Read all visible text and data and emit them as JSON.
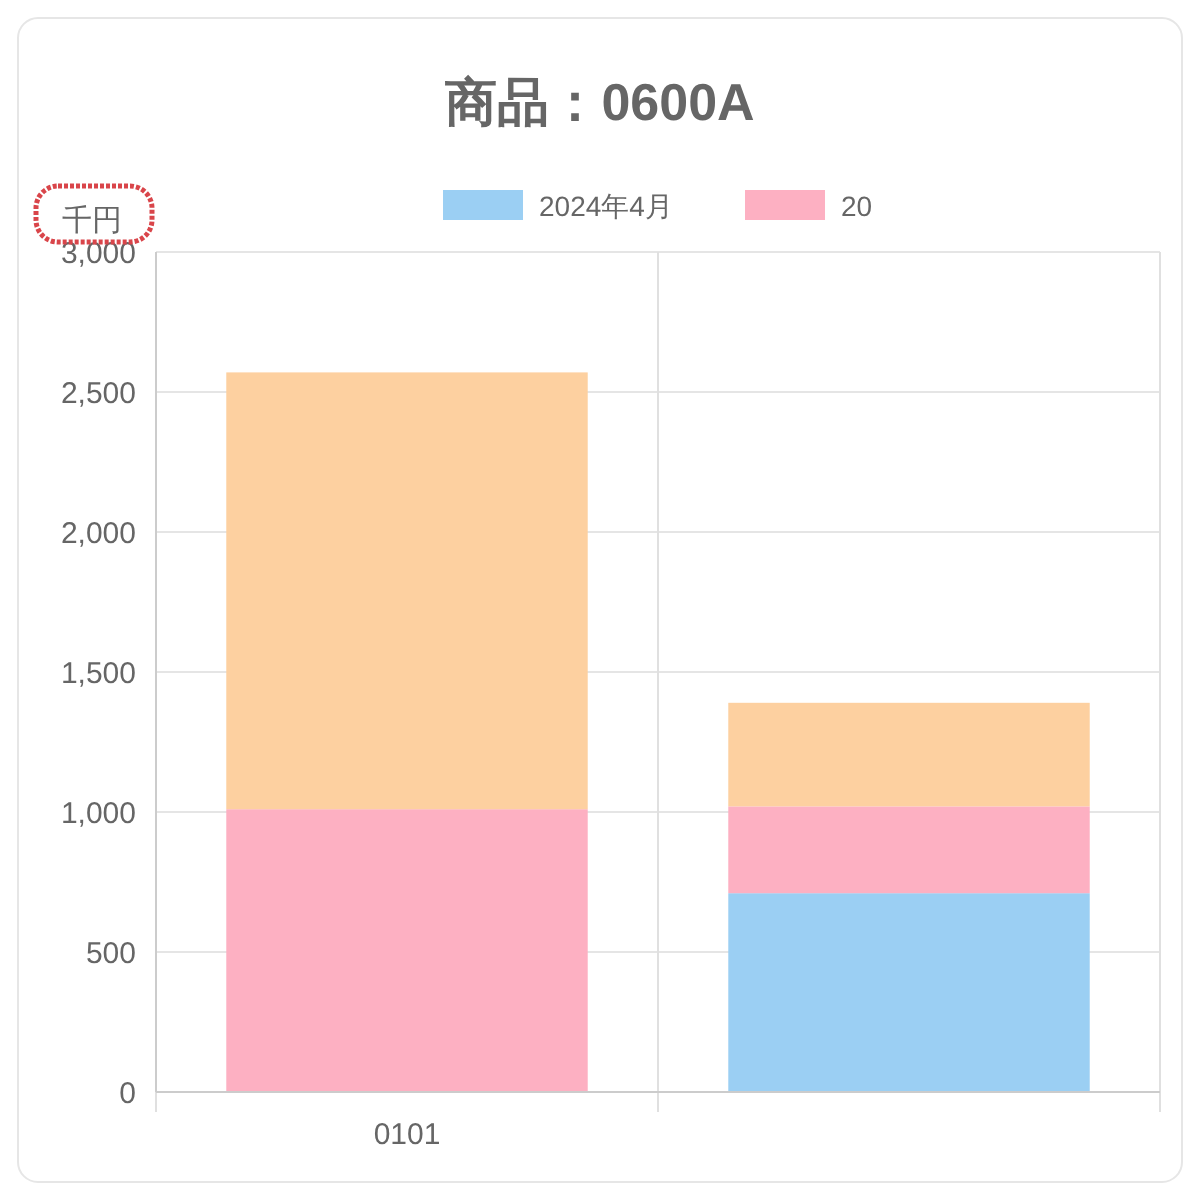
{
  "chart_data": {
    "type": "bar",
    "title": "商品：0600A",
    "ylabel": "千円",
    "categories": [
      "0101",
      null
    ],
    "stacked": true,
    "series": [
      {
        "name": "2024年4月",
        "color": "#9bcff3",
        "values": [
          0,
          710
        ]
      },
      {
        "name": "20",
        "color": "#fdb0c2",
        "values": [
          1010,
          310
        ]
      },
      {
        "color": "#fdd0a0",
        "values": [
          1560,
          370
        ]
      }
    ],
    "ylim": [
      0,
      3000
    ],
    "yticks": [
      {
        "value": 0,
        "label": "0"
      },
      {
        "value": 500,
        "label": "500"
      },
      {
        "value": 1000,
        "label": "1,000"
      },
      {
        "value": 1500,
        "label": "1,500"
      },
      {
        "value": 2000,
        "label": "2,000"
      },
      {
        "value": 2500,
        "label": "2,500"
      },
      {
        "value": 3000,
        "label": "3,000"
      }
    ],
    "grid": true,
    "legend": "top"
  }
}
